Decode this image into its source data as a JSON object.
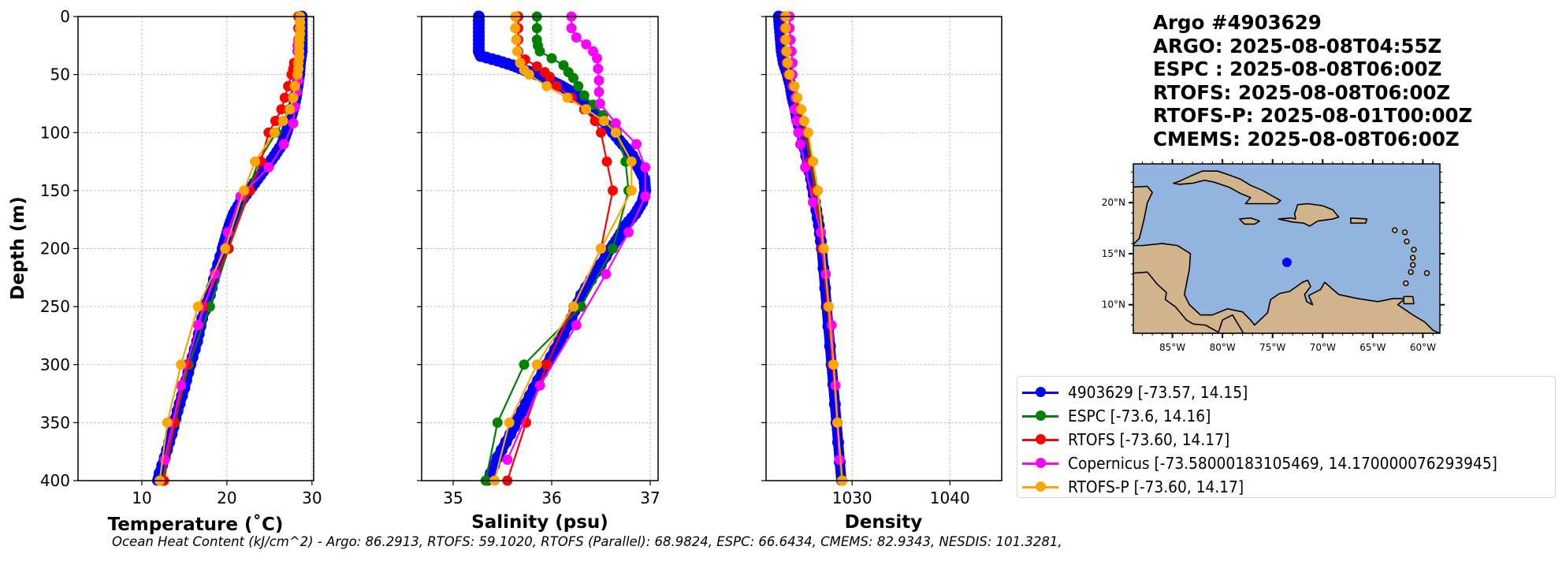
{
  "info": {
    "title": "Argo #4903629",
    "lines": [
      "ARGO: 2025-08-08T04:55Z",
      "ESPC : 2025-08-08T06:00Z",
      "RTOFS: 2025-08-08T06:00Z",
      "RTOFS-P: 2025-08-01T00:00Z",
      "CMEMS: 2025-08-08T06:00Z"
    ]
  },
  "legend": [
    {
      "label": "4903629 [-73.57, 14.15]",
      "color": "#0000ff"
    },
    {
      "label": "ESPC [-73.6, 14.16]",
      "color": "#008000"
    },
    {
      "label": "RTOFS [-73.60, 14.17]",
      "color": "#ff0000"
    },
    {
      "label": "Copernicus [-73.58000183105469, 14.170000076293945]",
      "color": "#ff00ff"
    },
    {
      "label": "RTOFS-P [-73.60, 14.17]",
      "color": "#ffa500"
    }
  ],
  "footer": {
    "ohc_text": "Ocean Heat Content (kJ/cm^2) - Argo: 86.2913,  RTOFS: 59.1020,  RTOFS (Parallel): 68.9824,  ESPC: 66.6434,  CMEMS: 82.9343,  NESDIS: 101.3281,"
  },
  "map": {
    "lon_ticks": [
      "85°W",
      "80°W",
      "75°W",
      "70°W",
      "65°W",
      "60°W"
    ],
    "lon_values": [
      -85,
      -80,
      -75,
      -70,
      -65,
      -60
    ],
    "lat_ticks": [
      "20°N",
      "15°N",
      "10°N"
    ],
    "lat_values": [
      20,
      15,
      10
    ],
    "extent": {
      "lon": [
        -88.9,
        -58.3
      ],
      "lat": [
        7.2,
        23.8
      ]
    },
    "marker": {
      "lon": -73.57,
      "lat": 14.15,
      "color": "#0000ff"
    },
    "ocean_color": "#94b4e0",
    "land_color": "#d2b48c"
  },
  "chart_data": [
    {
      "type": "line",
      "title": "",
      "xlabel": "Temperature (˚C)",
      "ylabel": "Depth (m)",
      "xlim": [
        2.5,
        30.2
      ],
      "ylim": [
        400,
        0
      ],
      "xticks": [
        10,
        20,
        30
      ],
      "yticks": [
        0,
        50,
        100,
        150,
        200,
        250,
        300,
        350,
        400
      ],
      "grid": true,
      "series": [
        {
          "name": "4903629",
          "color": "#0000ff",
          "dense": true,
          "depth": [
            0,
            10,
            20,
            30,
            40,
            50,
            60,
            70,
            80,
            90,
            100,
            110,
            120,
            130,
            140,
            150,
            160,
            170,
            180,
            190,
            200,
            220,
            240,
            260,
            280,
            300,
            320,
            340,
            360,
            380,
            400
          ],
          "values": [
            28.8,
            28.8,
            28.8,
            28.8,
            28.6,
            28.5,
            28.3,
            28.1,
            27.8,
            27.4,
            27.0,
            26.5,
            25.6,
            24.6,
            23.6,
            22.6,
            21.6,
            20.8,
            20.3,
            19.9,
            19.5,
            18.7,
            18.0,
            17.1,
            16.5,
            15.7,
            15.0,
            14.2,
            13.5,
            12.7,
            11.8
          ]
        },
        {
          "name": "ESPC",
          "color": "#008000",
          "depth": [
            0,
            10,
            20,
            30,
            40,
            50,
            60,
            70,
            80,
            90,
            100,
            125,
            150,
            200,
            250,
            300,
            350,
            400
          ],
          "values": [
            28.6,
            28.6,
            28.6,
            28.5,
            28.4,
            28.3,
            28.0,
            27.7,
            27.3,
            26.6,
            25.8,
            23.7,
            22.5,
            20.2,
            18.0,
            15.5,
            13.9,
            12.4
          ]
        },
        {
          "name": "RTOFS",
          "color": "#ff0000",
          "depth": [
            0,
            10,
            20,
            30,
            40,
            45,
            50,
            60,
            70,
            80,
            90,
            100,
            125,
            150,
            200,
            250,
            300,
            350,
            400
          ],
          "values": [
            28.4,
            28.4,
            28.4,
            28.3,
            27.9,
            27.8,
            27.6,
            27.2,
            26.8,
            26.4,
            25.7,
            24.9,
            24.0,
            22.7,
            20.2,
            17.2,
            15.3,
            13.8,
            12.6
          ]
        },
        {
          "name": "Copernicus",
          "color": "#ff00ff",
          "depth": [
            0,
            10,
            20,
            25,
            30,
            45,
            55,
            65,
            78,
            92,
            110,
            130,
            155,
            186,
            222,
            266,
            318,
            382
          ],
          "values": [
            28.6,
            28.6,
            28.5,
            28.3,
            28.3,
            28.4,
            28.4,
            28.2,
            28.0,
            27.8,
            26.7,
            24.9,
            21.6,
            20.1,
            18.6,
            16.6,
            14.6,
            12.7
          ]
        },
        {
          "name": "RTOFS-P",
          "color": "#ffa500",
          "depth": [
            0,
            5,
            10,
            15,
            20,
            25,
            30,
            35,
            40,
            45,
            50,
            60,
            70,
            80,
            90,
            100,
            125,
            150,
            200,
            250,
            300,
            350,
            400
          ],
          "values": [
            28.6,
            28.6,
            28.6,
            28.6,
            28.5,
            28.5,
            28.5,
            28.5,
            28.4,
            28.4,
            28.3,
            28.0,
            27.8,
            27.4,
            26.6,
            25.6,
            23.3,
            22.0,
            19.8,
            16.6,
            14.6,
            13.0,
            12.1
          ]
        }
      ]
    },
    {
      "type": "line",
      "title": "",
      "xlabel": "Salinity (psu)",
      "ylabel": "",
      "xlim": [
        34.68,
        37.08
      ],
      "ylim": [
        400,
        0
      ],
      "xticks": [
        35,
        36,
        37
      ],
      "yticks": [
        0,
        50,
        100,
        150,
        200,
        250,
        300,
        350,
        400
      ],
      "grid": true,
      "series": [
        {
          "name": "4903629",
          "color": "#0000ff",
          "dense": true,
          "depth": [
            0,
            10,
            20,
            30,
            34,
            38,
            42,
            46,
            50,
            55,
            60,
            65,
            70,
            80,
            90,
            100,
            110,
            120,
            130,
            140,
            150,
            160,
            170,
            180,
            190,
            200,
            220,
            240,
            260,
            280,
            300,
            320,
            340,
            360,
            380,
            400
          ],
          "values": [
            35.26,
            35.26,
            35.26,
            35.26,
            35.28,
            35.45,
            35.6,
            35.72,
            35.85,
            35.98,
            36.1,
            36.2,
            36.28,
            36.4,
            36.52,
            36.62,
            36.72,
            36.82,
            36.88,
            36.94,
            36.95,
            36.92,
            36.85,
            36.75,
            36.68,
            36.6,
            36.45,
            36.3,
            36.2,
            36.08,
            35.95,
            35.82,
            35.7,
            35.58,
            35.45,
            35.35
          ]
        },
        {
          "name": "ESPC",
          "color": "#008000",
          "depth": [
            0,
            10,
            20,
            25,
            30,
            36,
            42,
            48,
            53,
            60,
            68,
            76,
            85,
            100,
            125,
            150,
            200,
            250,
            300,
            350,
            400
          ],
          "values": [
            35.85,
            35.85,
            35.85,
            35.86,
            35.88,
            36.0,
            36.12,
            36.17,
            36.22,
            36.27,
            36.33,
            36.42,
            36.52,
            36.66,
            36.75,
            36.78,
            36.62,
            36.3,
            35.72,
            35.45,
            35.33
          ]
        },
        {
          "name": "RTOFS",
          "color": "#ff0000",
          "depth": [
            0,
            10,
            20,
            30,
            37,
            43,
            48,
            52,
            60,
            70,
            80,
            90,
            100,
            125,
            150,
            200,
            250,
            300,
            350,
            400
          ],
          "values": [
            35.66,
            35.66,
            35.66,
            35.66,
            35.73,
            35.85,
            35.93,
            35.98,
            36.05,
            36.2,
            36.33,
            36.44,
            36.5,
            36.56,
            36.62,
            36.5,
            36.22,
            35.95,
            35.74,
            35.55
          ]
        },
        {
          "name": "Copernicus",
          "color": "#ff00ff",
          "depth": [
            0,
            10,
            18,
            24,
            30,
            36,
            45,
            55,
            65,
            75,
            92,
            110,
            130,
            155,
            186,
            222,
            266,
            318,
            382
          ],
          "values": [
            36.2,
            36.2,
            36.25,
            36.35,
            36.42,
            36.46,
            36.47,
            36.48,
            36.48,
            36.49,
            36.65,
            36.86,
            36.95,
            36.95,
            36.78,
            36.55,
            36.25,
            35.88,
            35.55
          ]
        },
        {
          "name": "RTOFS-P",
          "color": "#ffa500",
          "depth": [
            0,
            10,
            20,
            30,
            40,
            46,
            50,
            60,
            70,
            80,
            90,
            100,
            125,
            150,
            200,
            250,
            300,
            350,
            400
          ],
          "values": [
            35.63,
            35.63,
            35.64,
            35.65,
            35.68,
            35.72,
            35.77,
            35.95,
            36.16,
            36.35,
            36.53,
            36.65,
            36.81,
            36.81,
            36.5,
            36.22,
            35.85,
            35.57,
            35.42
          ]
        }
      ]
    },
    {
      "type": "line",
      "title": "",
      "xlabel": "Density",
      "ylabel": "",
      "xlim": [
        1021.2,
        1045.3
      ],
      "ylim": [
        400,
        0
      ],
      "xticks": [
        1030,
        1040
      ],
      "yticks": [
        0,
        50,
        100,
        150,
        200,
        250,
        300,
        350,
        400
      ],
      "grid": true,
      "series": [
        {
          "name": "4903629",
          "color": "#0000ff",
          "dense": true,
          "depth": [
            0,
            10,
            20,
            30,
            40,
            50,
            60,
            70,
            80,
            90,
            100,
            120,
            140,
            160,
            180,
            200,
            250,
            300,
            350,
            400
          ],
          "values": [
            1022.5,
            1022.6,
            1022.7,
            1022.8,
            1023.0,
            1023.4,
            1023.7,
            1023.9,
            1024.2,
            1024.4,
            1024.8,
            1025.3,
            1025.8,
            1026.2,
            1026.6,
            1026.9,
            1027.4,
            1027.9,
            1028.4,
            1028.9
          ]
        },
        {
          "name": "ESPC",
          "color": "#008000",
          "depth": [
            0,
            10,
            20,
            30,
            40,
            50,
            60,
            70,
            80,
            90,
            100,
            125,
            150,
            200,
            250,
            300,
            350,
            400
          ],
          "values": [
            1023.2,
            1023.2,
            1023.2,
            1023.3,
            1023.4,
            1023.6,
            1024.0,
            1024.3,
            1024.7,
            1025.0,
            1025.3,
            1025.9,
            1026.4,
            1027.0,
            1027.5,
            1028.0,
            1028.5,
            1028.9
          ]
        },
        {
          "name": "RTOFS",
          "color": "#ff0000",
          "depth": [
            0,
            10,
            20,
            30,
            40,
            50,
            60,
            70,
            80,
            90,
            100,
            125,
            150,
            200,
            250,
            300,
            350,
            400
          ],
          "values": [
            1023.1,
            1023.1,
            1023.1,
            1023.2,
            1023.3,
            1023.5,
            1023.9,
            1024.2,
            1024.5,
            1024.9,
            1025.2,
            1025.7,
            1026.2,
            1026.9,
            1027.5,
            1028.0,
            1028.5,
            1029.0
          ]
        },
        {
          "name": "Copernicus",
          "color": "#ff00ff",
          "depth": [
            0,
            10,
            20,
            30,
            40,
            50,
            60,
            70,
            80,
            90,
            100,
            110,
            130,
            160,
            186,
            222,
            266,
            318,
            382
          ],
          "values": [
            1023.6,
            1023.6,
            1023.7,
            1023.8,
            1023.9,
            1023.9,
            1024.0,
            1024.2,
            1024.1,
            1024.3,
            1024.5,
            1024.7,
            1025.2,
            1026.0,
            1026.8,
            1027.3,
            1027.9,
            1028.3,
            1028.7
          ]
        },
        {
          "name": "RTOFS-P",
          "color": "#ffa500",
          "depth": [
            0,
            10,
            20,
            30,
            40,
            50,
            60,
            70,
            80,
            90,
            100,
            125,
            150,
            200,
            250,
            300,
            350,
            400
          ],
          "values": [
            1023.2,
            1023.2,
            1023.2,
            1023.3,
            1023.4,
            1023.6,
            1024.1,
            1024.4,
            1024.8,
            1025.1,
            1025.5,
            1026.0,
            1026.5,
            1027.1,
            1027.6,
            1028.1,
            1028.5,
            1029.0
          ]
        }
      ]
    }
  ]
}
